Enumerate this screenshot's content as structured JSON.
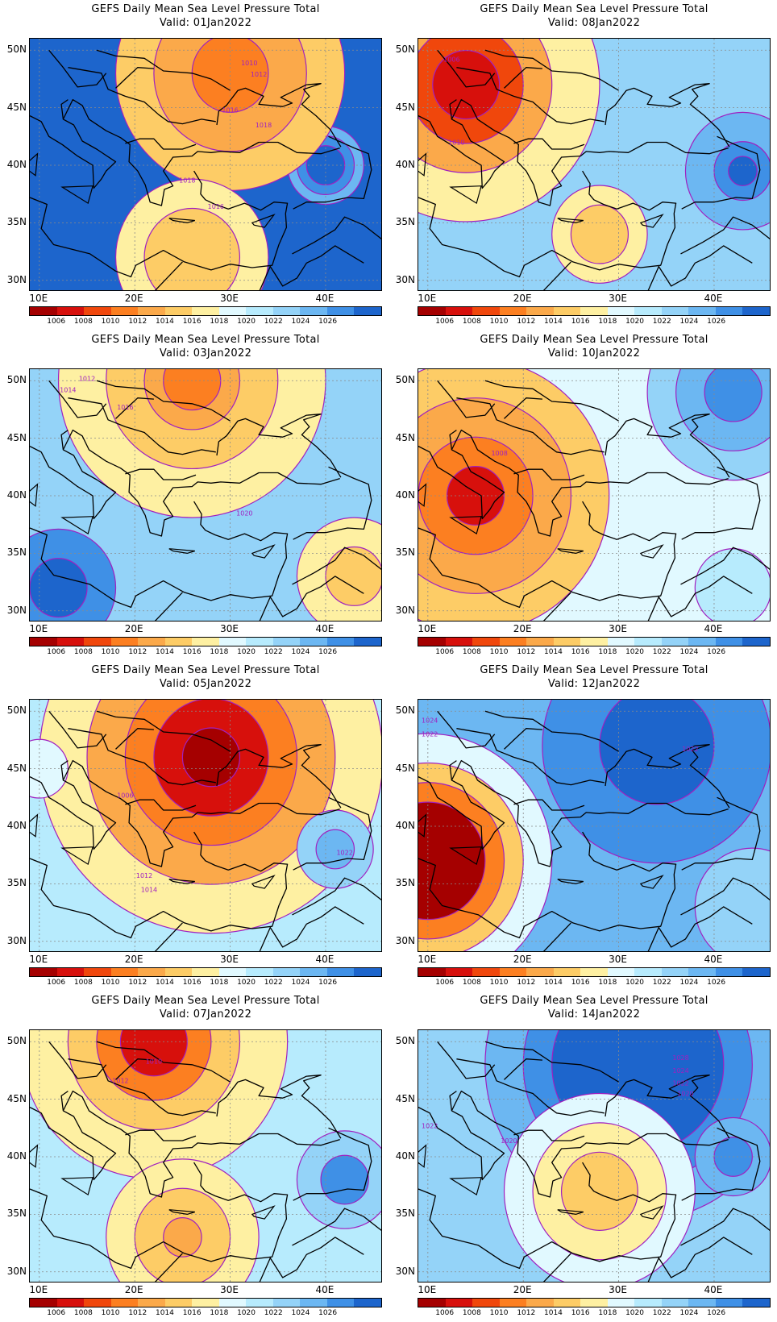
{
  "colorbar": {
    "colors": [
      "#a50000",
      "#d7100c",
      "#f0470c",
      "#fc7f21",
      "#fba94a",
      "#fdcc66",
      "#fef0a2",
      "#e1f9ff",
      "#b7ebfd",
      "#94d3f8",
      "#6cb7f2",
      "#3f90e6",
      "#1d65cc"
    ],
    "labels": [
      "1006",
      "1008",
      "1010",
      "1012",
      "1014",
      "1016",
      "1018",
      "1020",
      "1022",
      "1024",
      "1026"
    ]
  },
  "axes": {
    "lat_labels": [
      "50N",
      "45N",
      "40N",
      "35N",
      "30N"
    ],
    "lat_values": [
      50,
      45,
      40,
      35,
      30
    ],
    "lon_labels": [
      "10E",
      "20E",
      "30E",
      "40E"
    ],
    "lon_values": [
      10,
      20,
      30,
      40
    ],
    "lon_range": [
      9,
      46
    ],
    "lat_range": [
      29,
      51
    ]
  },
  "panels": [
    {
      "title": "GEFS Daily Mean Sea Level Pressure Total",
      "valid": "Valid: 01Jan2022",
      "background": "#1d65cc",
      "fields": [
        {
          "lon": 40,
          "lat": 40,
          "r": [
            4,
            3,
            2
          ],
          "colors": [
            "#6cb7f2",
            "#3f90e6",
            "#1d65cc"
          ]
        },
        {
          "lon": 30,
          "lat": 48,
          "r": [
            12,
            8,
            4
          ],
          "colors": [
            "#fdcc66",
            "#fba94a",
            "#fc7f21"
          ]
        },
        {
          "lon": 26,
          "lat": 32,
          "r": [
            8,
            5
          ],
          "colors": [
            "#fef0a2",
            "#fdcc66"
          ]
        }
      ],
      "labels": [
        {
          "text": "1010",
          "lon": 32,
          "lat": 48.7
        },
        {
          "text": "1012",
          "lon": 33,
          "lat": 47.7
        },
        {
          "text": "1016",
          "lon": 30,
          "lat": 44.6
        },
        {
          "text": "1018",
          "lon": 33.5,
          "lat": 43.3
        },
        {
          "text": "1018",
          "lon": 25.5,
          "lat": 38.5
        },
        {
          "text": "1016",
          "lon": 28.5,
          "lat": 36.2
        }
      ]
    },
    {
      "title": "GEFS Daily Mean Sea Level Pressure Total",
      "valid": "Valid: 08Jan2022",
      "background": "#94d3f8",
      "fields": [
        {
          "lon": 14,
          "lat": 47,
          "r": [
            14,
            9,
            6,
            3.5
          ],
          "colors": [
            "#fef0a2",
            "#fba94a",
            "#f0470c",
            "#d7100c"
          ]
        },
        {
          "lon": 43,
          "lat": 39.5,
          "r": [
            6,
            3,
            1.5
          ],
          "colors": [
            "#6cb7f2",
            "#3f90e6",
            "#1d65cc"
          ]
        },
        {
          "lon": 28,
          "lat": 34,
          "r": [
            5,
            3
          ],
          "colors": [
            "#fef0a2",
            "#fdcc66"
          ]
        }
      ],
      "labels": [
        {
          "text": "1006",
          "lon": 12.5,
          "lat": 49
        },
        {
          "text": "1010",
          "lon": 13,
          "lat": 41.8
        }
      ]
    },
    {
      "title": "GEFS Daily Mean Sea Level Pressure Total",
      "valid": "Valid: 03Jan2022",
      "background": "#94d3f8",
      "fields": [
        {
          "lon": 26,
          "lat": 50,
          "r": [
            14,
            9,
            5,
            3
          ],
          "colors": [
            "#fef0a2",
            "#fdcc66",
            "#fba94a",
            "#fc7f21"
          ]
        },
        {
          "lon": 12,
          "lat": 32,
          "r": [
            6,
            3
          ],
          "colors": [
            "#3f90e6",
            "#1d65cc"
          ]
        },
        {
          "lon": 43,
          "lat": 33,
          "r": [
            6,
            3
          ],
          "colors": [
            "#fef0a2",
            "#fdcc66"
          ]
        }
      ],
      "labels": [
        {
          "text": "1012",
          "lon": 15,
          "lat": 50
        },
        {
          "text": "1014",
          "lon": 13,
          "lat": 49
        },
        {
          "text": "1016",
          "lon": 19,
          "lat": 47.5
        },
        {
          "text": "1020",
          "lon": 31.5,
          "lat": 38.3
        }
      ]
    },
    {
      "title": "GEFS Daily Mean Sea Level Pressure Total",
      "valid": "Valid: 10Jan2022",
      "background": "#e1f9ff",
      "fields": [
        {
          "lon": 42,
          "lat": 49,
          "r": [
            9,
            6,
            3
          ],
          "colors": [
            "#94d3f8",
            "#6cb7f2",
            "#3f90e6"
          ]
        },
        {
          "lon": 15,
          "lat": 40,
          "r": [
            14,
            10,
            6,
            3
          ],
          "colors": [
            "#fdcc66",
            "#fba94a",
            "#fc7f21",
            "#d7100c"
          ]
        },
        {
          "lon": 42,
          "lat": 32,
          "r": [
            4
          ],
          "colors": [
            "#b7ebfd"
          ]
        }
      ],
      "labels": [
        {
          "text": "1008",
          "lon": 17.5,
          "lat": 43.5
        }
      ]
    },
    {
      "title": "GEFS Daily Mean Sea Level Pressure Total",
      "valid": "Valid: 05Jan2022",
      "background": "#b7ebfd",
      "fields": [
        {
          "lon": 28,
          "lat": 46,
          "r": [
            18,
            13,
            9,
            6,
            3
          ],
          "colors": [
            "#fef0a2",
            "#fba94a",
            "#fc7f21",
            "#d7100c",
            "#a50000"
          ]
        },
        {
          "lon": 41,
          "lat": 38,
          "r": [
            4,
            2
          ],
          "colors": [
            "#94d3f8",
            "#6cb7f2"
          ]
        },
        {
          "lon": 10,
          "lat": 45,
          "r": [
            3
          ],
          "colors": [
            "#e1f9ff"
          ]
        }
      ],
      "labels": [
        {
          "text": "1006",
          "lon": 19,
          "lat": 42.5
        },
        {
          "text": "1022",
          "lon": 42,
          "lat": 37.5
        },
        {
          "text": "1012",
          "lon": 21,
          "lat": 35.5
        },
        {
          "text": "1014",
          "lon": 21.5,
          "lat": 34.3
        }
      ]
    },
    {
      "title": "GEFS Daily Mean Sea Level Pressure Total",
      "valid": "Valid: 12Jan2022",
      "background": "#6cb7f2",
      "fields": [
        {
          "lon": 10,
          "lat": 37,
          "r": [
            13,
            10,
            8,
            6
          ],
          "colors": [
            "#e1f9ff",
            "#fdcc66",
            "#fc7f21",
            "#a50000"
          ]
        },
        {
          "lon": 34,
          "lat": 47,
          "r": [
            12,
            6
          ],
          "colors": [
            "#3f90e6",
            "#1d65cc"
          ]
        },
        {
          "lon": 44,
          "lat": 33,
          "r": [
            6
          ],
          "colors": [
            "#94d3f8"
          ]
        }
      ],
      "labels": [
        {
          "text": "1024",
          "lon": 10.2,
          "lat": 49
        },
        {
          "text": "1022",
          "lon": 10.2,
          "lat": 47.8
        },
        {
          "text": "1022",
          "lon": 37.5,
          "lat": 46.5
        }
      ]
    },
    {
      "title": "GEFS Daily Mean Sea Level Pressure Total",
      "valid": "Valid: 07Jan2022",
      "background": "#b7ebfd",
      "fields": [
        {
          "lon": 22,
          "lat": 50,
          "r": [
            14,
            9,
            6,
            3.5
          ],
          "colors": [
            "#fef0a2",
            "#fdcc66",
            "#fc7f21",
            "#d7100c"
          ]
        },
        {
          "lon": 25,
          "lat": 33,
          "r": [
            8,
            5,
            2
          ],
          "colors": [
            "#fef0a2",
            "#fdcc66",
            "#fba94a"
          ]
        },
        {
          "lon": 42,
          "lat": 38,
          "r": [
            5,
            2.5
          ],
          "colors": [
            "#94d3f8",
            "#3f90e6"
          ]
        }
      ],
      "labels": [
        {
          "text": "1010",
          "lon": 22,
          "lat": 48.1
        },
        {
          "text": "1012",
          "lon": 18.5,
          "lat": 46.4
        }
      ]
    },
    {
      "title": "GEFS Daily Mean Sea Level Pressure Total",
      "valid": "Valid: 14Jan2022",
      "background": "#94d3f8",
      "fields": [
        {
          "lon": 32,
          "lat": 48,
          "r": [
            16,
            12,
            9
          ],
          "colors": [
            "#6cb7f2",
            "#3f90e6",
            "#1d65cc"
          ]
        },
        {
          "lon": 28,
          "lat": 37,
          "r": [
            10,
            7,
            4
          ],
          "colors": [
            "#e1f9ff",
            "#fef0a2",
            "#fdcc66"
          ]
        },
        {
          "lon": 42,
          "lat": 40,
          "r": [
            4,
            2
          ],
          "colors": [
            "#6cb7f2",
            "#3f90e6"
          ]
        }
      ],
      "labels": [
        {
          "text": "1028",
          "lon": 36.5,
          "lat": 48.4
        },
        {
          "text": "1024",
          "lon": 36.5,
          "lat": 47.3
        },
        {
          "text": "1022",
          "lon": 36.5,
          "lat": 46.2
        },
        {
          "text": "1020",
          "lon": 37,
          "lat": 45.3
        },
        {
          "text": "1022",
          "lon": 10.2,
          "lat": 42.5
        },
        {
          "text": "1020",
          "lon": 18.5,
          "lat": 41.2
        }
      ]
    }
  ]
}
